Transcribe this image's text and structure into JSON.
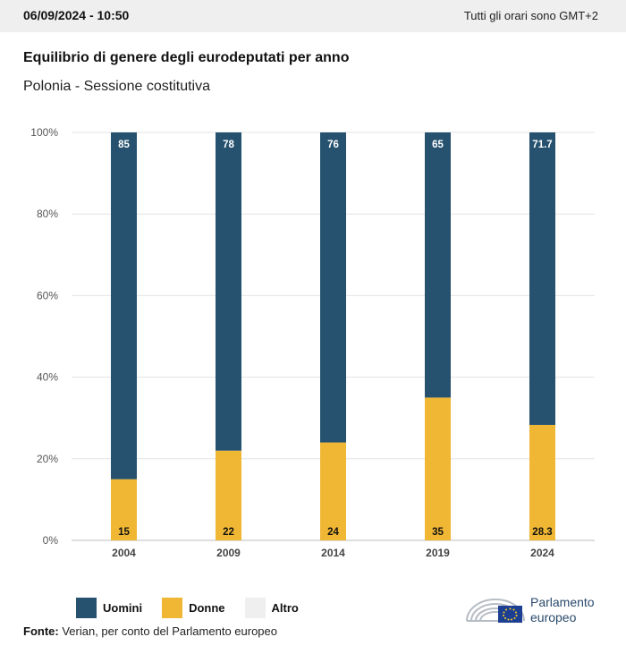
{
  "header": {
    "datetime": "06/09/2024 - 10:50",
    "timezone_note": "Tutti gli orari sono GMT+2"
  },
  "title": "Equilibrio di genere degli eurodeputati per anno",
  "subtitle": "Polonia - Sessione costitutiva",
  "legend": {
    "items": [
      {
        "label": "Uomini",
        "color": "#26526f"
      },
      {
        "label": "Donne",
        "color": "#efb734"
      },
      {
        "label": "Altro",
        "color": "#efefef"
      }
    ]
  },
  "source": {
    "label": "Fonte:",
    "text": " Verian, per conto del Parlamento europeo"
  },
  "logo": {
    "line1": "Parlamento",
    "line2": "europeo"
  },
  "chart_data": {
    "type": "bar",
    "stacked": true,
    "categories": [
      "2004",
      "2009",
      "2014",
      "2019",
      "2024"
    ],
    "series": [
      {
        "name": "Uomini",
        "color": "#26526f",
        "values": [
          85,
          78,
          76,
          65,
          71.7
        ],
        "labels": [
          "85",
          "78",
          "76",
          "65",
          "71.7"
        ]
      },
      {
        "name": "Donne",
        "color": "#efb734",
        "values": [
          15,
          22,
          24,
          35,
          28.3
        ],
        "labels": [
          "15",
          "22",
          "24",
          "35",
          "28.3"
        ]
      }
    ],
    "ylim": [
      0,
      100
    ],
    "yticks": [
      0,
      20,
      40,
      60,
      80,
      100
    ],
    "ytick_labels": [
      "0%",
      "20%",
      "40%",
      "60%",
      "80%",
      "100%"
    ],
    "grid": true,
    "legend_position": "bottom-left"
  }
}
